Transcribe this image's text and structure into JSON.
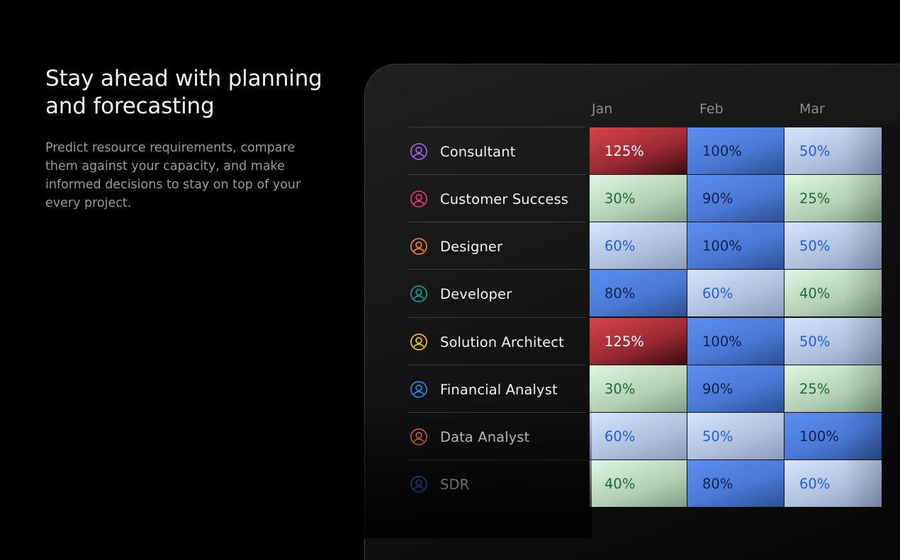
{
  "hero": {
    "title": "Stay ahead with planning and forecasting",
    "description": "Predict resource requirements, compare them against your capacity, and make informed decisions to stay on top of your every project."
  },
  "table": {
    "months": [
      "Jan",
      "Feb",
      "Mar"
    ],
    "rows": [
      {
        "role": "Consultant",
        "icon": "user-circle-icon",
        "icon_color": "#a35cf0",
        "values": [
          "125%",
          "100%",
          "50%"
        ]
      },
      {
        "role": "Customer Success",
        "icon": "user-circle-icon",
        "icon_color": "#e0397a",
        "values": [
          "30%",
          "90%",
          "25%"
        ]
      },
      {
        "role": "Designer",
        "icon": "user-circle-icon",
        "icon_color": "#f47a3c",
        "values": [
          "60%",
          "100%",
          "50%"
        ]
      },
      {
        "role": "Developer",
        "icon": "user-circle-icon",
        "icon_color": "#139b92",
        "values": [
          "80%",
          "60%",
          "40%"
        ]
      },
      {
        "role": "Solution Architect",
        "icon": "user-circle-icon",
        "icon_color": "#f1c21b",
        "values": [
          "125%",
          "100%",
          "50%"
        ]
      },
      {
        "role": "Financial Analyst",
        "icon": "user-circle-icon",
        "icon_color": "#1f8ce8",
        "values": [
          "30%",
          "90%",
          "25%"
        ]
      },
      {
        "role": "Data Analyst",
        "icon": "user-circle-icon",
        "icon_color": "#f47a3c",
        "values": [
          "60%",
          "50%",
          "100%"
        ]
      },
      {
        "role": "SDR",
        "icon": "user-circle-icon",
        "icon_color": "#3a78f2",
        "values": [
          "40%",
          "80%",
          "60%"
        ]
      }
    ]
  },
  "colors": {
    "over": "#d9434b",
    "high": "#5a8ef0",
    "mid": "#d6e4ff",
    "low": "#dcf8e2",
    "text_red": "#ffffff",
    "text_blue": "#1f5fd6",
    "text_navy": "#0b1f4e",
    "text_green": "#1e6b30"
  }
}
